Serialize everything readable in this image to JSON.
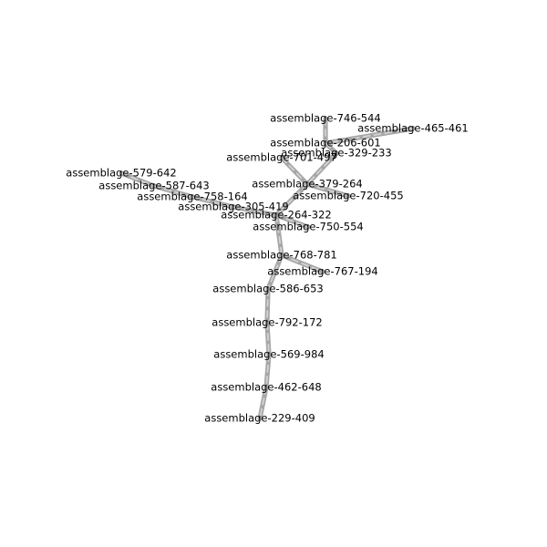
{
  "diagram": {
    "nodes": [
      {
        "id": "n746",
        "label": "assemblage-746-544"
      },
      {
        "id": "n465",
        "label": "assemblage-465-461"
      },
      {
        "id": "n206",
        "label": "assemblage-206-601"
      },
      {
        "id": "n329",
        "label": "assemblage-329-233"
      },
      {
        "id": "n701",
        "label": "assemblage-701-497"
      },
      {
        "id": "n579",
        "label": "assemblage-579-642"
      },
      {
        "id": "n587",
        "label": "assemblage-587-643"
      },
      {
        "id": "n379",
        "label": "assemblage-379-264"
      },
      {
        "id": "n758",
        "label": "assemblage-758-164"
      },
      {
        "id": "n720",
        "label": "assemblage-720-455"
      },
      {
        "id": "n305",
        "label": "assemblage-305-419"
      },
      {
        "id": "n264",
        "label": "assemblage-264-322"
      },
      {
        "id": "n750",
        "label": "assemblage-750-554"
      },
      {
        "id": "n768",
        "label": "assemblage-768-781"
      },
      {
        "id": "n767",
        "label": "assemblage-767-194"
      },
      {
        "id": "n586",
        "label": "assemblage-586-653"
      },
      {
        "id": "n792",
        "label": "assemblage-792-172"
      },
      {
        "id": "n569",
        "label": "assemblage-569-984"
      },
      {
        "id": "n462",
        "label": "assemblage-462-648"
      },
      {
        "id": "n229",
        "label": "assemblage-229-409"
      }
    ],
    "edges": [
      [
        "n746",
        "n206"
      ],
      [
        "n465",
        "n206"
      ],
      [
        "n206",
        "n329"
      ],
      [
        "n329",
        "n379"
      ],
      [
        "n701",
        "n379"
      ],
      [
        "n379",
        "n720"
      ],
      [
        "n379",
        "n264"
      ],
      [
        "n579",
        "n587"
      ],
      [
        "n587",
        "n758"
      ],
      [
        "n758",
        "n305"
      ],
      [
        "n305",
        "n264"
      ],
      [
        "n264",
        "n750"
      ],
      [
        "n264",
        "n768"
      ],
      [
        "n768",
        "n767"
      ],
      [
        "n768",
        "n586"
      ],
      [
        "n586",
        "n792"
      ],
      [
        "n792",
        "n569"
      ],
      [
        "n569",
        "n462"
      ],
      [
        "n462",
        "n229"
      ]
    ]
  }
}
